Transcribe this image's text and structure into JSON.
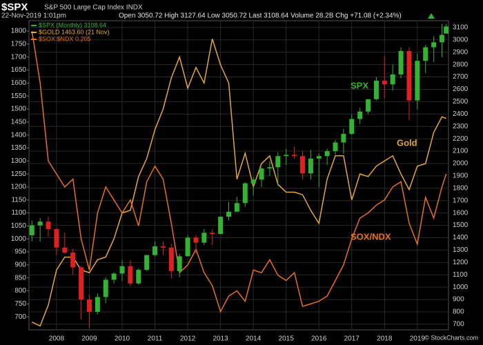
{
  "chart_data": {
    "type": "candlestick",
    "symbol": "$SPX",
    "title": "S&P 500 Large Cap Index INDX",
    "timestamp": "22-Nov-2019 1:01pm",
    "quote": "Open 3050.72  High 3127.64  Low 3050.72  Last 3108.64  Volume 28.2B  Chg +71.08 (+2.34%)",
    "credit": "© StockCharts.com",
    "background": "#000000",
    "grid": true,
    "x": [
      2007.25,
      2007.5,
      2007.75,
      2008,
      2008.25,
      2008.5,
      2008.75,
      2009,
      2009.25,
      2009.5,
      2009.75,
      2010,
      2010.25,
      2010.5,
      2010.75,
      2011,
      2011.25,
      2011.5,
      2011.75,
      2012,
      2012.25,
      2012.5,
      2012.75,
      2013,
      2013.25,
      2013.5,
      2013.75,
      2014,
      2014.25,
      2014.5,
      2014.75,
      2015,
      2015.25,
      2015.5,
      2015.75,
      2016,
      2016.25,
      2016.5,
      2016.75,
      2017,
      2017.25,
      2017.5,
      2017.75,
      2018,
      2018.25,
      2018.5,
      2018.75,
      2019,
      2019.25,
      2019.5,
      2019.75,
      2019.88
    ],
    "xlim": [
      2007.16,
      2019.95
    ],
    "xticks": [
      2008,
      2009,
      2010,
      2011,
      2012,
      2013,
      2014,
      2015,
      2016,
      2017,
      2018,
      2019
    ],
    "ylim": [
      650,
      1840
    ],
    "yticks": [
      700,
      750,
      800,
      850,
      900,
      950,
      1000,
      1050,
      1100,
      1150,
      1200,
      1250,
      1300,
      1350,
      1400,
      1450,
      1500,
      1550,
      1600,
      1650,
      1700,
      1750,
      1800
    ],
    "y2lim": [
      655,
      3155
    ],
    "y2ticks": [
      700,
      800,
      900,
      1000,
      1100,
      1200,
      1300,
      1400,
      1500,
      1600,
      1700,
      1800,
      1900,
      2000,
      2100,
      2200,
      2300,
      2400,
      2500,
      2600,
      2700,
      2800,
      2900,
      3000,
      3100
    ],
    "candles": {
      "name": "$SPX (Monthly) 3108.64",
      "axis": "y2",
      "up_color": "#33b233",
      "down_color": "#e02020",
      "open": [
        1420,
        1500,
        1530,
        1470,
        1320,
        1280,
        1160,
        900,
        800,
        920,
        1060,
        1110,
        1170,
        1030,
        1140,
        1260,
        1330,
        1320,
        1130,
        1250,
        1400,
        1360,
        1440,
        1430,
        1570,
        1610,
        1680,
        1840,
        1870,
        1960,
        1970,
        2060,
        2070,
        2060,
        1920,
        2040,
        2060,
        2100,
        2170,
        2240,
        2360,
        2420,
        2520,
        2670,
        2640,
        2720,
        2910,
        2510,
        2830,
        2940,
        2980,
        3050.72
      ],
      "high": [
        1540,
        1560,
        1570,
        1480,
        1440,
        1310,
        1170,
        940,
        950,
        1080,
        1120,
        1220,
        1220,
        1150,
        1260,
        1370,
        1370,
        1350,
        1270,
        1420,
        1420,
        1470,
        1470,
        1570,
        1690,
        1730,
        1850,
        1890,
        1970,
        2020,
        2090,
        2120,
        2135,
        2100,
        2110,
        2080,
        2120,
        2190,
        2280,
        2400,
        2450,
        2520,
        2700,
        2870,
        2800,
        2940,
        2940,
        2890,
        2960,
        3030,
        3128,
        3127.64
      ],
      "low": [
        1370,
        1370,
        1410,
        1260,
        1270,
        1100,
        740,
        670,
        780,
        870,
        1030,
        1050,
        1010,
        1020,
        1130,
        1250,
        1260,
        1070,
        1080,
        1250,
        1270,
        1340,
        1340,
        1430,
        1540,
        1620,
        1650,
        1740,
        1810,
        1900,
        1820,
        1990,
        2040,
        1870,
        1870,
        1810,
        1990,
        2070,
        2080,
        2230,
        2320,
        2400,
        2510,
        2530,
        2590,
        2690,
        2350,
        2440,
        2730,
        2820,
        2860,
        3050.72
      ],
      "close": [
        1500,
        1530,
        1470,
        1320,
        1280,
        1160,
        900,
        800,
        920,
        1060,
        1110,
        1170,
        1030,
        1140,
        1260,
        1330,
        1320,
        1130,
        1250,
        1400,
        1360,
        1440,
        1430,
        1570,
        1610,
        1680,
        1840,
        1870,
        1960,
        1970,
        2060,
        2070,
        2060,
        1920,
        2040,
        2060,
        2100,
        2170,
        2240,
        2360,
        2420,
        2520,
        2670,
        2640,
        2720,
        2910,
        2510,
        2830,
        2940,
        2980,
        3040,
        3108.64
      ]
    },
    "series": [
      {
        "name": "$GOLD 1463.60 (21 Nov)",
        "color": "#e8a838",
        "axis": "y",
        "values": [
          680,
          665,
          745,
          880,
          930,
          930,
          880,
          870,
          920,
          930,
          1000,
          1100,
          1110,
          1240,
          1310,
          1420,
          1500,
          1620,
          1700,
          1580,
          1660,
          1600,
          1770,
          1670,
          1600,
          1230,
          1330,
          1200,
          1290,
          1320,
          1210,
          1180,
          1180,
          1170,
          1110,
          1060,
          1230,
          1320,
          1320,
          1150,
          1250,
          1240,
          1280,
          1300,
          1320,
          1250,
          1190,
          1280,
          1290,
          1410,
          1470,
          1463.6
        ]
      },
      {
        "name": "$SOX:$NDX 0.205",
        "color": "#e8701e",
        "axis": "y",
        "values": [
          1800,
          1600,
          1300,
          1250,
          1200,
          1230,
          1000,
          880,
          1100,
          1200,
          1150,
          1100,
          1150,
          1050,
          1220,
          1280,
          1230,
          1060,
          870,
          900,
          960,
          870,
          820,
          720,
          780,
          800,
          760,
          880,
          870,
          920,
          860,
          840,
          870,
          740,
          750,
          760,
          780,
          840,
          900,
          1000,
          1080,
          1100,
          1130,
          1150,
          1200,
          1220,
          1060,
          980,
          1160,
          1080,
          1200,
          1250
        ]
      }
    ],
    "annotations": [
      {
        "text": "SPX",
        "color": "#33b233"
      },
      {
        "text": "Gold",
        "color": "#e8a838"
      },
      {
        "text": "SOX/NDX",
        "color": "#e8701e"
      }
    ]
  }
}
